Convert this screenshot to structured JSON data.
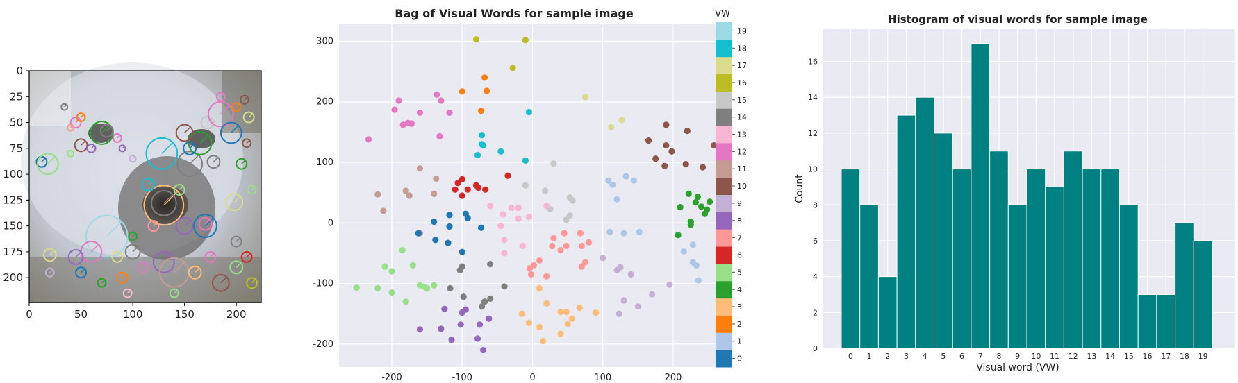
{
  "palette": [
    "#1f77b4",
    "#aec7e8",
    "#ff7f0e",
    "#ffbb78",
    "#2ca02c",
    "#98df8a",
    "#d62728",
    "#ff9896",
    "#9467bd",
    "#c5b0d5",
    "#8c564b",
    "#c49c94",
    "#e377c2",
    "#f7b6d2",
    "#7f7f7f",
    "#c7c7c7",
    "#bcbd22",
    "#dbdb8d",
    "#17becf",
    "#9edae5"
  ],
  "chart_data": [
    {
      "type": "image",
      "description_ticks": true,
      "xticks": [
        "0",
        "50",
        "100",
        "150",
        "200"
      ],
      "yticks": [
        "0",
        "25",
        "50",
        "75",
        "100",
        "125",
        "150",
        "175",
        "200"
      ],
      "xlim": [
        0,
        224
      ],
      "ylim": [
        224,
        0
      ],
      "keypoints": [
        {
          "x": 12,
          "y": 88,
          "r": 5,
          "c": 0
        },
        {
          "x": 18,
          "y": 90,
          "r": 10,
          "c": 5
        },
        {
          "x": 34,
          "y": 35,
          "r": 3,
          "c": 14
        },
        {
          "x": 45,
          "y": 50,
          "r": 5,
          "c": 12
        },
        {
          "x": 50,
          "y": 72,
          "r": 6,
          "c": 10
        },
        {
          "x": 60,
          "y": 75,
          "r": 4,
          "c": 8
        },
        {
          "x": 70,
          "y": 60,
          "r": 11,
          "c": 4
        },
        {
          "x": 75,
          "y": 58,
          "r": 6,
          "c": 14
        },
        {
          "x": 85,
          "y": 65,
          "r": 4,
          "c": 12
        },
        {
          "x": 50,
          "y": 45,
          "r": 4,
          "c": 2
        },
        {
          "x": 40,
          "y": 55,
          "r": 3,
          "c": 7
        },
        {
          "x": 90,
          "y": 75,
          "r": 3,
          "c": 8
        },
        {
          "x": 128,
          "y": 80,
          "r": 15,
          "c": 18
        },
        {
          "x": 155,
          "y": 90,
          "r": 12,
          "c": 14
        },
        {
          "x": 178,
          "y": 88,
          "r": 6,
          "c": 14
        },
        {
          "x": 165,
          "y": 70,
          "r": 11,
          "c": 4
        },
        {
          "x": 150,
          "y": 60,
          "r": 8,
          "c": 10
        },
        {
          "x": 155,
          "y": 75,
          "r": 6,
          "c": 0
        },
        {
          "x": 172,
          "y": 50,
          "r": 6,
          "c": 15
        },
        {
          "x": 185,
          "y": 42,
          "r": 12,
          "c": 12
        },
        {
          "x": 195,
          "y": 60,
          "r": 10,
          "c": 0
        },
        {
          "x": 200,
          "y": 35,
          "r": 4,
          "c": 2
        },
        {
          "x": 208,
          "y": 28,
          "r": 4,
          "c": 10
        },
        {
          "x": 212,
          "y": 45,
          "r": 5,
          "c": 17
        },
        {
          "x": 185,
          "y": 25,
          "r": 4,
          "c": 12
        },
        {
          "x": 210,
          "y": 70,
          "r": 4,
          "c": 10
        },
        {
          "x": 205,
          "y": 90,
          "r": 5,
          "c": 4
        },
        {
          "x": 130,
          "y": 130,
          "r": 19,
          "c": 3
        },
        {
          "x": 130,
          "y": 128,
          "r": 12,
          "c": 14
        },
        {
          "x": 115,
          "y": 110,
          "r": 6,
          "c": 18
        },
        {
          "x": 145,
          "y": 115,
          "r": 5,
          "c": 5
        },
        {
          "x": 150,
          "y": 150,
          "r": 8,
          "c": 8
        },
        {
          "x": 170,
          "y": 150,
          "r": 11,
          "c": 0
        },
        {
          "x": 170,
          "y": 148,
          "r": 6,
          "c": 12
        },
        {
          "x": 198,
          "y": 127,
          "r": 8,
          "c": 17
        },
        {
          "x": 200,
          "y": 165,
          "r": 5,
          "c": 14
        },
        {
          "x": 75,
          "y": 160,
          "r": 20,
          "c": 19
        },
        {
          "x": 60,
          "y": 175,
          "r": 10,
          "c": 12
        },
        {
          "x": 85,
          "y": 180,
          "r": 5,
          "c": 17
        },
        {
          "x": 45,
          "y": 180,
          "r": 7,
          "c": 8
        },
        {
          "x": 20,
          "y": 178,
          "r": 6,
          "c": 17
        },
        {
          "x": 20,
          "y": 195,
          "r": 4,
          "c": 9
        },
        {
          "x": 100,
          "y": 175,
          "r": 7,
          "c": 14
        },
        {
          "x": 110,
          "y": 190,
          "r": 5,
          "c": 12
        },
        {
          "x": 130,
          "y": 185,
          "r": 10,
          "c": 8
        },
        {
          "x": 140,
          "y": 195,
          "r": 14,
          "c": 11
        },
        {
          "x": 160,
          "y": 195,
          "r": 6,
          "c": 3
        },
        {
          "x": 175,
          "y": 180,
          "r": 5,
          "c": 12
        },
        {
          "x": 185,
          "y": 205,
          "r": 8,
          "c": 10
        },
        {
          "x": 200,
          "y": 190,
          "r": 6,
          "c": 5
        },
        {
          "x": 120,
          "y": 150,
          "r": 5,
          "c": 7
        },
        {
          "x": 100,
          "y": 160,
          "r": 4,
          "c": 4
        },
        {
          "x": 90,
          "y": 200,
          "r": 5,
          "c": 2
        },
        {
          "x": 70,
          "y": 205,
          "r": 4,
          "c": 4
        },
        {
          "x": 50,
          "y": 195,
          "r": 5,
          "c": 0
        },
        {
          "x": 210,
          "y": 180,
          "r": 5,
          "c": 6
        },
        {
          "x": 215,
          "y": 205,
          "r": 5,
          "c": 16
        },
        {
          "x": 40,
          "y": 80,
          "r": 3,
          "c": 5
        },
        {
          "x": 215,
          "y": 115,
          "r": 4,
          "c": 5
        },
        {
          "x": 100,
          "y": 85,
          "r": 3,
          "c": 9
        },
        {
          "x": 95,
          "y": 215,
          "r": 4,
          "c": 13
        },
        {
          "x": 140,
          "y": 215,
          "r": 4,
          "c": 5
        }
      ]
    },
    {
      "type": "scatter",
      "title": "Bag of Visual Words for sample image",
      "xticks": [
        -200,
        -100,
        0,
        100,
        200
      ],
      "yticks": [
        -200,
        -100,
        0,
        100,
        200,
        300
      ],
      "xlim": [
        -275,
        280
      ],
      "ylim": [
        -238,
        328
      ],
      "colorbar": {
        "title": "VW",
        "ticks": [
          "0",
          "1",
          "2",
          "3",
          "4",
          "5",
          "6",
          "7",
          "8",
          "9",
          "10",
          "11",
          "12",
          "13",
          "14",
          "15",
          "16",
          "17",
          "18",
          "19"
        ]
      },
      "points": [
        [
          -80,
          303,
          16
        ],
        [
          -10,
          302,
          16
        ],
        [
          -28,
          256,
          16
        ],
        [
          75,
          208,
          17
        ],
        [
          112,
          158,
          17
        ],
        [
          127,
          170,
          17
        ],
        [
          -68,
          240,
          2
        ],
        [
          -65,
          218,
          2
        ],
        [
          -100,
          217,
          2
        ],
        [
          -73,
          185,
          2
        ],
        [
          -190,
          202,
          12
        ],
        [
          -136,
          212,
          12
        ],
        [
          -160,
          182,
          12
        ],
        [
          -196,
          187,
          12
        ],
        [
          -130,
          202,
          12
        ],
        [
          -118,
          182,
          12
        ],
        [
          -184,
          162,
          12
        ],
        [
          -177,
          165,
          12
        ],
        [
          -172,
          164,
          12
        ],
        [
          -132,
          143,
          12
        ],
        [
          -233,
          138,
          12
        ],
        [
          -5,
          183,
          18
        ],
        [
          -72,
          145,
          18
        ],
        [
          -72,
          130,
          18
        ],
        [
          -70,
          128,
          18
        ],
        [
          -78,
          112,
          18
        ],
        [
          -45,
          118,
          18
        ],
        [
          -10,
          103,
          18
        ],
        [
          190,
          162,
          10
        ],
        [
          220,
          152,
          10
        ],
        [
          165,
          136,
          10
        ],
        [
          190,
          128,
          10
        ],
        [
          198,
          118,
          10
        ],
        [
          175,
          106,
          10
        ],
        [
          188,
          94,
          10
        ],
        [
          218,
          97,
          10
        ],
        [
          242,
          92,
          10
        ],
        [
          258,
          128,
          10
        ],
        [
          -100,
          72,
          6
        ],
        [
          -106,
          66,
          6
        ],
        [
          -92,
          55,
          6
        ],
        [
          -110,
          55,
          6
        ],
        [
          -80,
          62,
          6
        ],
        [
          -77,
          58,
          6
        ],
        [
          -67,
          55,
          6
        ],
        [
          -35,
          78,
          6
        ],
        [
          -100,
          45,
          6
        ],
        [
          30,
          98,
          15
        ],
        [
          -10,
          62,
          15
        ],
        [
          18,
          53,
          15
        ],
        [
          53,
          42,
          15
        ],
        [
          57,
          37,
          15
        ],
        [
          25,
          23,
          15
        ],
        [
          48,
          5,
          15
        ],
        [
          53,
          12,
          15
        ],
        [
          -160,
          90,
          11
        ],
        [
          -137,
          73,
          11
        ],
        [
          -140,
          48,
          11
        ],
        [
          -220,
          47,
          11
        ],
        [
          -180,
          53,
          11
        ],
        [
          -175,
          45,
          11
        ],
        [
          -212,
          20,
          11
        ],
        [
          -160,
          -17,
          11
        ],
        [
          222,
          48,
          4
        ],
        [
          235,
          43,
          4
        ],
        [
          232,
          34,
          4
        ],
        [
          252,
          35,
          4
        ],
        [
          240,
          27,
          4
        ],
        [
          210,
          26,
          4
        ],
        [
          248,
          22,
          4
        ],
        [
          245,
          15,
          4
        ],
        [
          225,
          2,
          4
        ],
        [
          207,
          -20,
          4
        ],
        [
          225,
          -3,
          4
        ],
        [
          108,
          70,
          1
        ],
        [
          114,
          63,
          1
        ],
        [
          133,
          77,
          1
        ],
        [
          144,
          70,
          1
        ],
        [
          120,
          39,
          1
        ],
        [
          110,
          -15,
          1
        ],
        [
          130,
          -17,
          1
        ],
        [
          152,
          -15,
          1
        ],
        [
          228,
          -36,
          1
        ],
        [
          215,
          -47,
          1
        ],
        [
          228,
          -65,
          1
        ],
        [
          233,
          -70,
          1
        ],
        [
          236,
          -95,
          1
        ],
        [
          270,
          -27,
          1
        ],
        [
          -118,
          13,
          0
        ],
        [
          -95,
          15,
          0
        ],
        [
          -92,
          8,
          0
        ],
        [
          -140,
          2,
          0
        ],
        [
          -118,
          -6,
          0
        ],
        [
          -73,
          -8,
          0
        ],
        [
          -162,
          -17,
          0
        ],
        [
          -138,
          -28,
          0
        ],
        [
          -120,
          -33,
          0
        ],
        [
          -100,
          -48,
          0
        ],
        [
          -60,
          28,
          13
        ],
        [
          -30,
          25,
          13
        ],
        [
          -20,
          25,
          13
        ],
        [
          -42,
          14,
          13
        ],
        [
          -20,
          7,
          13
        ],
        [
          -5,
          10,
          13
        ],
        [
          -40,
          -28,
          13
        ],
        [
          -40,
          -50,
          13
        ],
        [
          -14,
          -38,
          13
        ],
        [
          -45,
          -5,
          13
        ],
        [
          20,
          28,
          13
        ],
        [
          30,
          -25,
          7
        ],
        [
          45,
          -17,
          7
        ],
        [
          68,
          -17,
          7
        ],
        [
          80,
          -32,
          7
        ],
        [
          40,
          -45,
          7
        ],
        [
          28,
          -38,
          7
        ],
        [
          48,
          -38,
          7
        ],
        [
          10,
          -62,
          7
        ],
        [
          2,
          -70,
          7
        ],
        [
          -4,
          -75,
          7
        ],
        [
          -2,
          -85,
          7
        ],
        [
          20,
          -88,
          7
        ],
        [
          75,
          -65,
          7
        ],
        [
          70,
          -72,
          7
        ],
        [
          70,
          -38,
          7
        ],
        [
          -60,
          -68,
          14
        ],
        [
          -100,
          -72,
          14
        ],
        [
          -103,
          -78,
          14
        ],
        [
          -117,
          -108,
          14
        ],
        [
          -98,
          -122,
          14
        ],
        [
          -40,
          -105,
          14
        ],
        [
          -60,
          -125,
          14
        ],
        [
          -68,
          -130,
          14
        ],
        [
          -72,
          -138,
          14
        ],
        [
          -210,
          -72,
          5
        ],
        [
          -170,
          -70,
          5
        ],
        [
          -185,
          -45,
          5
        ],
        [
          -200,
          -80,
          5
        ],
        [
          -160,
          -103,
          5
        ],
        [
          -155,
          -105,
          5
        ],
        [
          -150,
          -108,
          5
        ],
        [
          -140,
          -103,
          5
        ],
        [
          -220,
          -108,
          5
        ],
        [
          -200,
          -115,
          5
        ],
        [
          -250,
          -107,
          5
        ],
        [
          -180,
          -130,
          5
        ],
        [
          -125,
          -142,
          8
        ],
        [
          -100,
          -148,
          8
        ],
        [
          -95,
          -143,
          8
        ],
        [
          -62,
          -158,
          8
        ],
        [
          -102,
          -168,
          8
        ],
        [
          -75,
          -168,
          8
        ],
        [
          -130,
          -175,
          8
        ],
        [
          -160,
          -176,
          8
        ],
        [
          -115,
          -193,
          8
        ],
        [
          -78,
          -191,
          8
        ],
        [
          -70,
          -210,
          8
        ],
        [
          100,
          -58,
          9
        ],
        [
          120,
          -78,
          9
        ],
        [
          125,
          -73,
          9
        ],
        [
          140,
          -85,
          9
        ],
        [
          195,
          -102,
          9
        ],
        [
          170,
          -118,
          9
        ],
        [
          130,
          -128,
          9
        ],
        [
          150,
          -138,
          9
        ],
        [
          123,
          -150,
          9
        ],
        [
          10,
          -108,
          3
        ],
        [
          20,
          -133,
          3
        ],
        [
          -15,
          -150,
          3
        ],
        [
          40,
          -147,
          3
        ],
        [
          48,
          -147,
          3
        ],
        [
          67,
          -140,
          3
        ],
        [
          90,
          -148,
          3
        ],
        [
          56,
          -158,
          3
        ],
        [
          50,
          -167,
          3
        ],
        [
          -5,
          -165,
          3
        ],
        [
          10,
          -172,
          3
        ],
        [
          40,
          -183,
          3
        ],
        [
          15,
          -195,
          3
        ]
      ]
    },
    {
      "type": "bar",
      "title": "Histogram of visual words for sample image",
      "xlabel": "Visual word (VW)",
      "ylabel": "Count",
      "categories": [
        "0",
        "1",
        "2",
        "3",
        "4",
        "5",
        "6",
        "7",
        "8",
        "9",
        "10",
        "11",
        "12",
        "13",
        "14",
        "15",
        "16",
        "17",
        "18",
        "19"
      ],
      "values": [
        10,
        8,
        4,
        13,
        14,
        12,
        10,
        17,
        11,
        8,
        10,
        9,
        11,
        10,
        10,
        8,
        3,
        3,
        7,
        6
      ],
      "yticks": [
        0,
        2,
        4,
        6,
        8,
        10,
        12,
        14,
        16
      ],
      "ylim": [
        0,
        17.8
      ],
      "bar_color": "#008080"
    }
  ]
}
